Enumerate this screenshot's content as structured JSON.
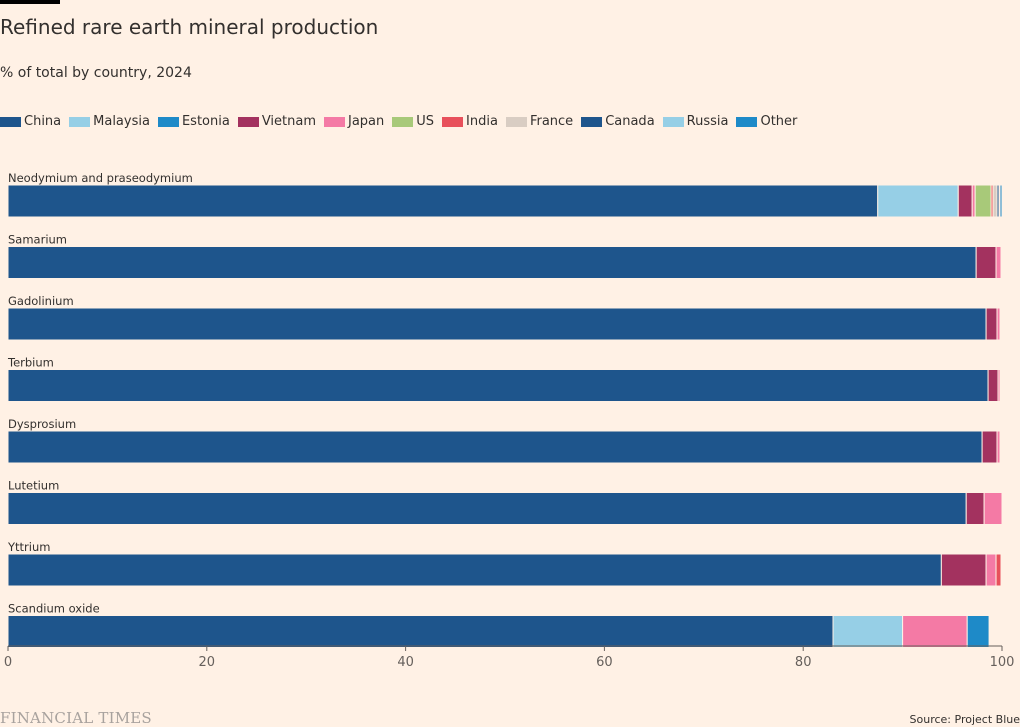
{
  "header": {
    "title": "Refined rare earth mineral production",
    "subtitle": "% of total by country, 2024"
  },
  "legend": [
    {
      "name": "China",
      "color": "#1e558c"
    },
    {
      "name": "Malaysia",
      "color": "#96cfe6"
    },
    {
      "name": "Estonia",
      "color": "#1e8ac8"
    },
    {
      "name": "Vietnam",
      "color": "#a3325f"
    },
    {
      "name": "Japan",
      "color": "#f47aa5"
    },
    {
      "name": "US",
      "color": "#a8c979"
    },
    {
      "name": "India",
      "color": "#e8505b"
    },
    {
      "name": "France",
      "color": "#d9cdc3"
    },
    {
      "name": "Canada",
      "color": "#1e558c"
    },
    {
      "name": "Russia",
      "color": "#96cfe6"
    },
    {
      "name": "Other",
      "color": "#1e8ac8"
    }
  ],
  "footer": {
    "brand": "FINANCIAL TIMES",
    "source": "Source: Project Blue"
  },
  "chart_data": {
    "type": "bar",
    "orientation": "horizontal",
    "stacked": true,
    "title": "Refined rare earth mineral production",
    "subtitle": "% of total by country, 2024",
    "xlabel": "",
    "ylabel": "",
    "xlim": [
      0,
      100
    ],
    "xticks": [
      0,
      20,
      40,
      60,
      80,
      100
    ],
    "grid": false,
    "legend_position": "top",
    "categories": [
      "Neodymium and praseodymium",
      "Samarium",
      "Gadolinium",
      "Terbium",
      "Dysprosium",
      "Lutetium",
      "Yttrium",
      "Scandium oxide"
    ],
    "series": [
      {
        "name": "China",
        "color": "#1e558c",
        "values": [
          87.5,
          97.4,
          98.4,
          98.6,
          98.0,
          96.4,
          93.9,
          83.0
        ]
      },
      {
        "name": "Malaysia",
        "color": "#96cfe6",
        "values": [
          8.1,
          0,
          0,
          0,
          0,
          0,
          0,
          7.0
        ]
      },
      {
        "name": "Estonia",
        "color": "#1e8ac8",
        "values": [
          0,
          0,
          0,
          0,
          0,
          0,
          0,
          0
        ]
      },
      {
        "name": "Vietnam",
        "color": "#a3325f",
        "values": [
          1.4,
          2.0,
          1.1,
          1.0,
          1.5,
          1.8,
          4.5,
          0
        ]
      },
      {
        "name": "Japan",
        "color": "#f47aa5",
        "values": [
          0.3,
          0.5,
          0.3,
          0.2,
          0.3,
          1.8,
          1.0,
          6.5
        ]
      },
      {
        "name": "US",
        "color": "#a8c979",
        "values": [
          1.6,
          0,
          0,
          0,
          0,
          0,
          0,
          0
        ]
      },
      {
        "name": "India",
        "color": "#e8505b",
        "values": [
          0.2,
          0,
          0.1,
          0.1,
          0.1,
          0,
          0.5,
          0
        ]
      },
      {
        "name": "France",
        "color": "#d9cdc3",
        "values": [
          0.4,
          0.1,
          0.1,
          0.1,
          0.1,
          0,
          0,
          0
        ]
      },
      {
        "name": "Canada",
        "color": "#1e558c",
        "values": [
          0.2,
          0,
          0,
          0,
          0,
          0,
          0,
          0
        ]
      },
      {
        "name": "Russia",
        "color": "#96cfe6",
        "values": [
          0.1,
          0,
          0,
          0,
          0,
          0,
          0,
          0
        ]
      },
      {
        "name": "Other",
        "color": "#1e8ac8",
        "values": [
          0.2,
          0,
          0,
          0,
          0,
          0,
          0.1,
          2.2
        ]
      }
    ]
  }
}
